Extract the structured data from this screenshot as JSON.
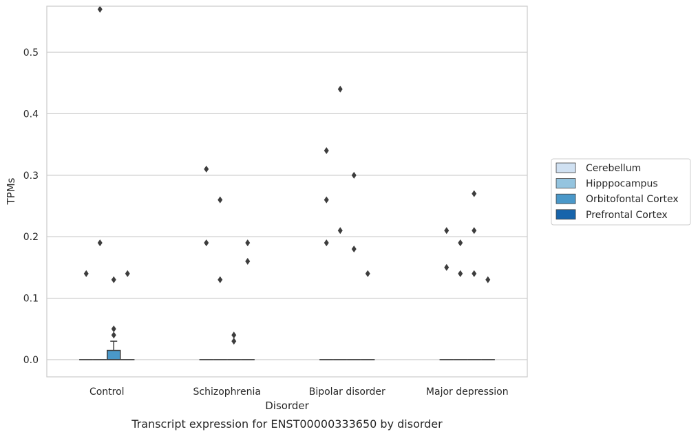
{
  "chart_data": {
    "type": "box",
    "caption": "Transcript expression for ENST00000333650 by disorder",
    "xlabel": "Disorder",
    "ylabel": "TPMs",
    "ylim": [
      -0.028,
      0.575
    ],
    "yticks": [
      "0.0",
      "0.1",
      "0.2",
      "0.3",
      "0.4",
      "0.5"
    ],
    "categories": [
      "Control",
      "Schizophrenia",
      "Bipolar disorder",
      "Major depression"
    ],
    "grid": true,
    "legend_position": "right",
    "series": [
      {
        "name": "Cerebellum",
        "color": "#d0e1f2"
      },
      {
        "name": "Hipppocampus",
        "color": "#94c4df"
      },
      {
        "name": "Orbitofontal Cortex",
        "color": "#4a98c9"
      },
      {
        "name": "Prefrontal Cortex",
        "color": "#1764ab"
      }
    ],
    "boxes": [
      {
        "category": "Control",
        "series": "Cerebellum",
        "q1": 0,
        "median": 0,
        "q3": 0,
        "whisker_low": 0,
        "whisker_high": 0,
        "outliers": [
          0.14
        ]
      },
      {
        "category": "Control",
        "series": "Hipppocampus",
        "q1": 0,
        "median": 0,
        "q3": 0,
        "whisker_low": 0,
        "whisker_high": 0,
        "outliers": [
          0.57,
          0.19
        ]
      },
      {
        "category": "Control",
        "series": "Orbitofontal Cortex",
        "q1": 0,
        "median": 0,
        "q3": 0.015,
        "whisker_low": 0,
        "whisker_high": 0.03,
        "outliers": [
          0.13,
          0.05,
          0.04
        ]
      },
      {
        "category": "Control",
        "series": "Prefrontal Cortex",
        "q1": 0,
        "median": 0,
        "q3": 0,
        "whisker_low": 0,
        "whisker_high": 0,
        "outliers": [
          0.14
        ]
      },
      {
        "category": "Schizophrenia",
        "series": "Cerebellum",
        "q1": 0,
        "median": 0,
        "q3": 0,
        "whisker_low": 0,
        "whisker_high": 0,
        "outliers": [
          0.31,
          0.19
        ]
      },
      {
        "category": "Schizophrenia",
        "series": "Hipppocampus",
        "q1": 0,
        "median": 0,
        "q3": 0,
        "whisker_low": 0,
        "whisker_high": 0,
        "outliers": [
          0.26,
          0.13
        ]
      },
      {
        "category": "Schizophrenia",
        "series": "Orbitofontal Cortex",
        "q1": 0,
        "median": 0,
        "q3": 0,
        "whisker_low": 0,
        "whisker_high": 0,
        "outliers": [
          0.04,
          0.03
        ]
      },
      {
        "category": "Schizophrenia",
        "series": "Prefrontal Cortex",
        "q1": 0,
        "median": 0,
        "q3": 0,
        "whisker_low": 0,
        "whisker_high": 0,
        "outliers": [
          0.19,
          0.16
        ]
      },
      {
        "category": "Bipolar disorder",
        "series": "Cerebellum",
        "q1": 0,
        "median": 0,
        "q3": 0,
        "whisker_low": 0,
        "whisker_high": 0,
        "outliers": [
          0.34,
          0.26,
          0.19
        ]
      },
      {
        "category": "Bipolar disorder",
        "series": "Hipppocampus",
        "q1": 0,
        "median": 0,
        "q3": 0,
        "whisker_low": 0,
        "whisker_high": 0,
        "outliers": [
          0.44,
          0.21
        ]
      },
      {
        "category": "Bipolar disorder",
        "series": "Orbitofontal Cortex",
        "q1": 0,
        "median": 0,
        "q3": 0,
        "whisker_low": 0,
        "whisker_high": 0,
        "outliers": [
          0.3,
          0.18
        ]
      },
      {
        "category": "Bipolar disorder",
        "series": "Prefrontal Cortex",
        "q1": 0,
        "median": 0,
        "q3": 0,
        "whisker_low": 0,
        "whisker_high": 0,
        "outliers": [
          0.14
        ]
      },
      {
        "category": "Major depression",
        "series": "Cerebellum",
        "q1": 0,
        "median": 0,
        "q3": 0,
        "whisker_low": 0,
        "whisker_high": 0,
        "outliers": [
          0.21,
          0.15
        ]
      },
      {
        "category": "Major depression",
        "series": "Hipppocampus",
        "q1": 0,
        "median": 0,
        "q3": 0,
        "whisker_low": 0,
        "whisker_high": 0,
        "outliers": [
          0.19,
          0.14
        ]
      },
      {
        "category": "Major depression",
        "series": "Orbitofontal Cortex",
        "q1": 0,
        "median": 0,
        "q3": 0,
        "whisker_low": 0,
        "whisker_high": 0,
        "outliers": [
          0.27,
          0.21,
          0.14
        ]
      },
      {
        "category": "Major depression",
        "series": "Prefrontal Cortex",
        "q1": 0,
        "median": 0,
        "q3": 0,
        "whisker_low": 0,
        "whisker_high": 0,
        "outliers": [
          0.13
        ]
      }
    ]
  }
}
